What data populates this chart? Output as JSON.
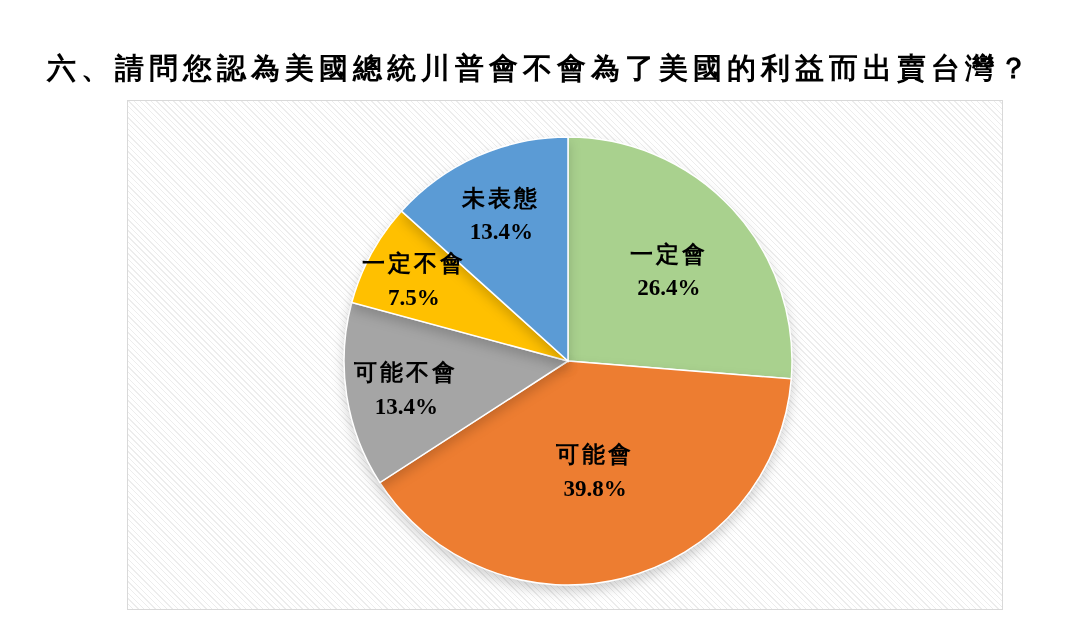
{
  "chart_data": {
    "type": "pie",
    "title": "六、請問您認為美國總統川普會不會為了美國的利益而出賣台灣？",
    "categories": [
      "一定會",
      "可能會",
      "可能不會",
      "一定不會",
      "未表態"
    ],
    "values": [
      26.4,
      39.8,
      13.4,
      7.5,
      13.4
    ],
    "colors": [
      "#a9d18e",
      "#ed7d31",
      "#a5a5a5",
      "#ffc000",
      "#5b9bd5"
    ],
    "value_labels": [
      "26.4%",
      "39.8%",
      "13.4%",
      "7.5%",
      "13.4%"
    ]
  }
}
